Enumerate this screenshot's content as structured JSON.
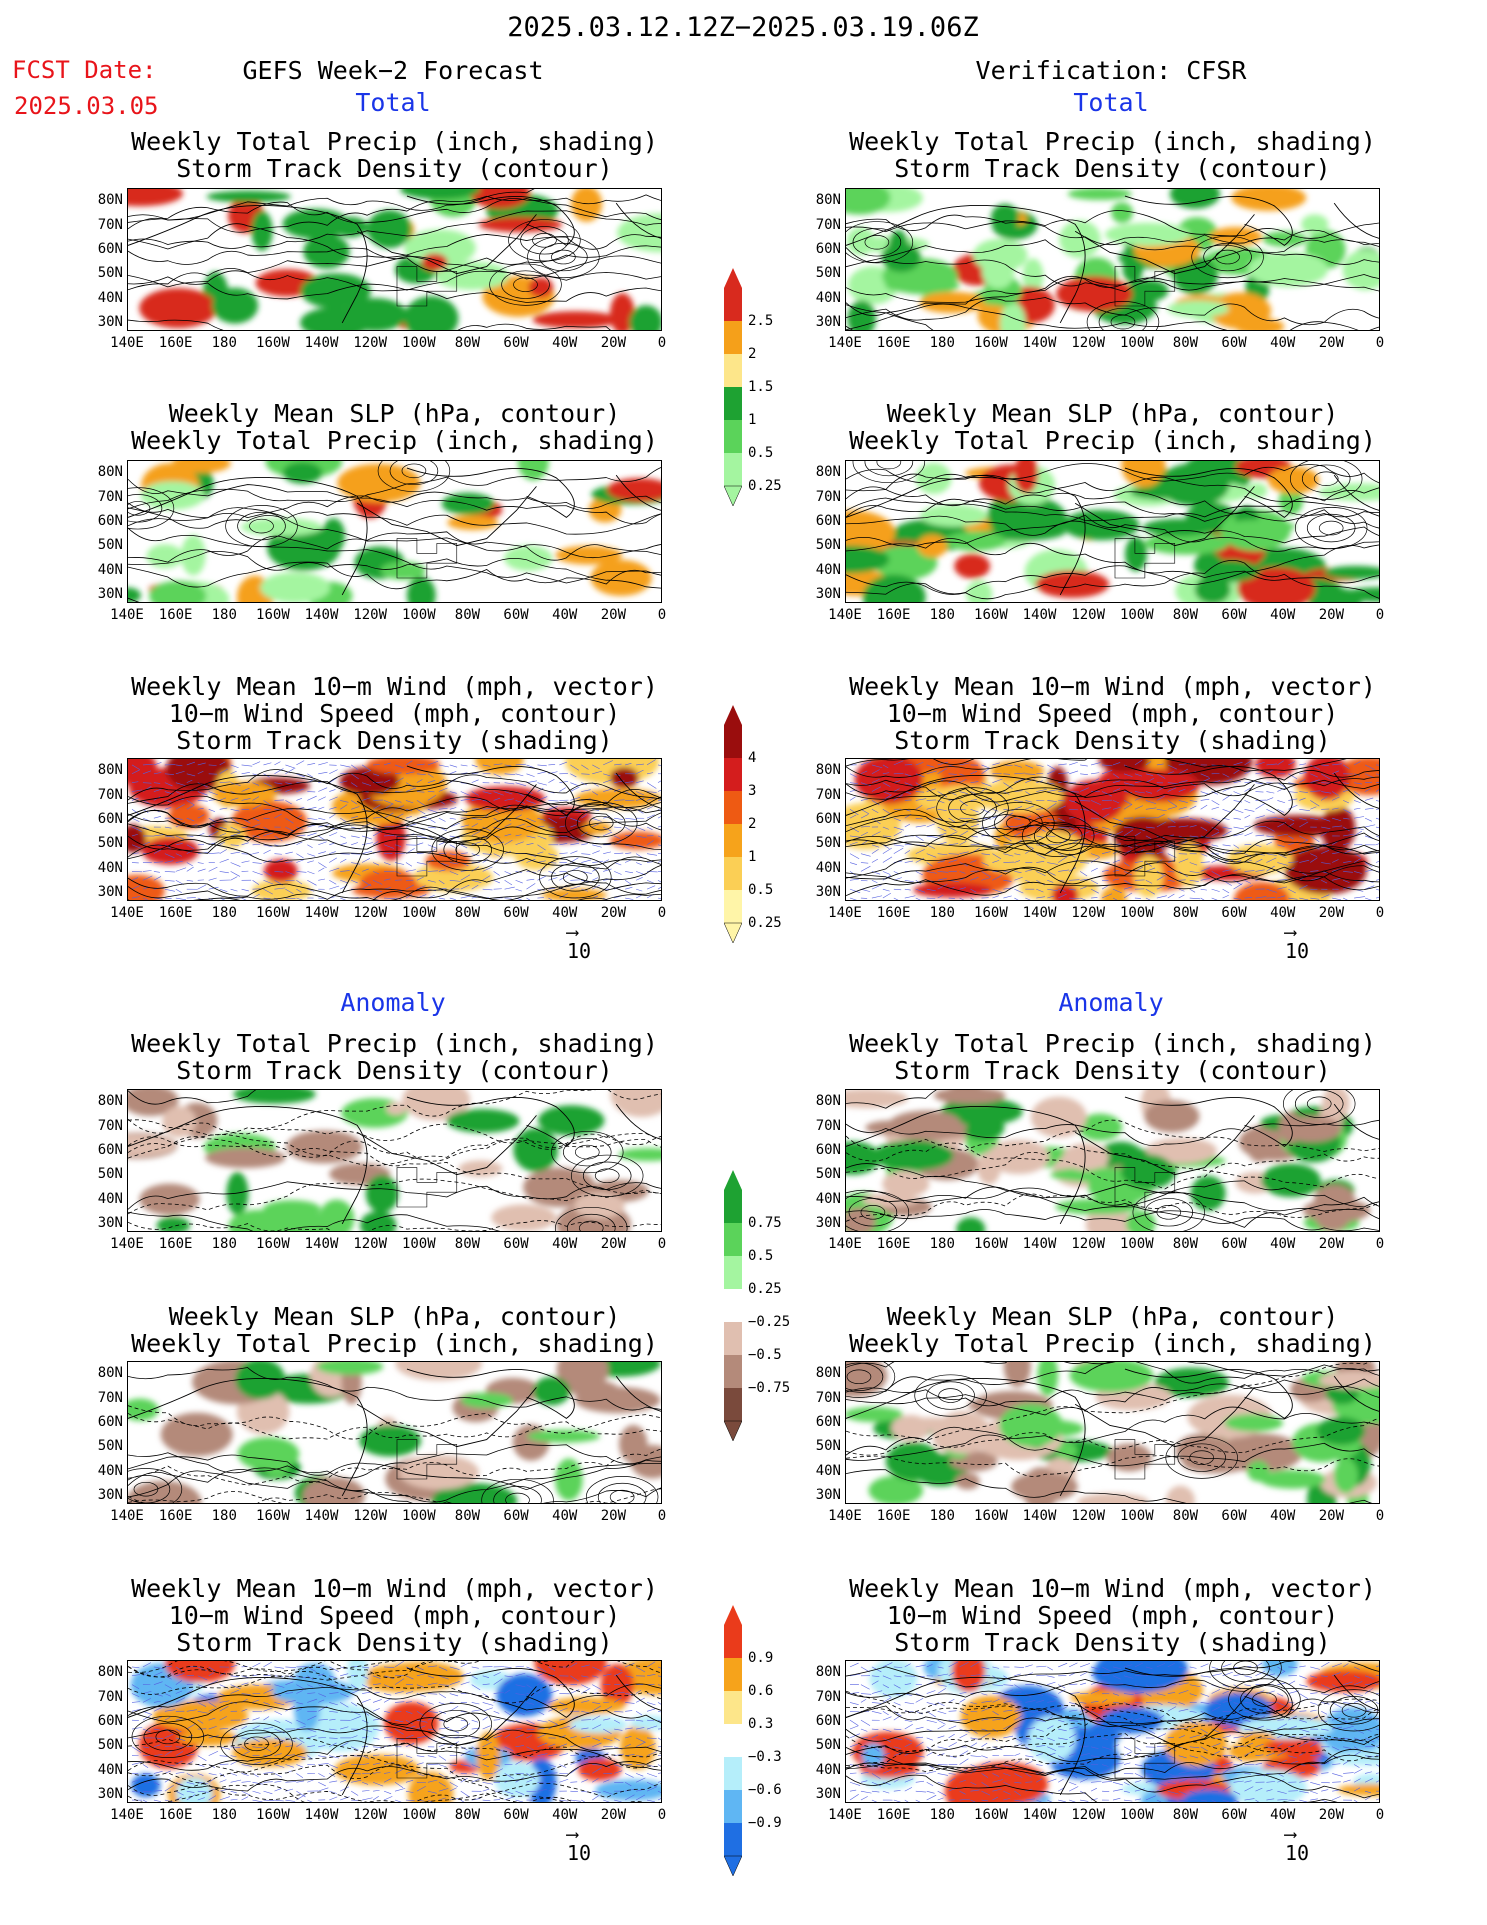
{
  "header": {
    "date_range": "2025.03.12.12Z−2025.03.19.06Z",
    "fcst_label": "FCST Date:",
    "fcst_date": "2025.03.05",
    "left_title": "GEFS Week−2 Forecast",
    "right_title": "Verification: CFSR"
  },
  "sections": {
    "total": "Total",
    "anomaly": "Anomaly"
  },
  "panel_titles": {
    "precip_storm": [
      "Weekly Total Precip (inch, shading)",
      "Storm Track Density (contour)"
    ],
    "slp_precip": [
      "Weekly Mean SLP (hPa, contour)",
      "Weekly Total Precip (inch, shading)"
    ],
    "wind_storm": [
      "Weekly Mean 10−m Wind (mph, vector)",
      "10−m Wind Speed (mph, contour)",
      "Storm Track Density (shading)"
    ]
  },
  "axes": {
    "lat_labels": [
      "80N",
      "70N",
      "60N",
      "50N",
      "40N",
      "30N"
    ],
    "lon_labels": [
      "140E",
      "160E",
      "180",
      "160W",
      "140W",
      "120W",
      "100W",
      "80W",
      "60W",
      "40W",
      "20W",
      "0"
    ]
  },
  "vector_ref": "10",
  "colorbars": {
    "precip_total": {
      "labels": [
        "2.5",
        "2",
        "1.5",
        "1",
        "0.5",
        "0.25"
      ],
      "colors": [
        "#d82a1e",
        "#f5a01a",
        "#fde68a",
        "#1ea232",
        "#5bd35a",
        "#a4f5a0"
      ]
    },
    "storm_total": {
      "labels": [
        "4",
        "3",
        "2",
        "1",
        "0.5",
        "0.25"
      ],
      "colors": [
        "#9a0d0d",
        "#d41d1d",
        "#ee5a13",
        "#f6a31b",
        "#fbcf55",
        "#fff5a8"
      ]
    },
    "precip_anom": {
      "labels": [
        "0.75",
        "0.5",
        "0.25",
        "−0.25",
        "−0.5",
        "−0.75"
      ],
      "colors": [
        "#1ea232",
        "#5bd35a",
        "#a4f5a0",
        "#ffffff",
        "#e0bfb0",
        "#b48a7a",
        "#7a4a3c"
      ]
    },
    "storm_anom": {
      "labels": [
        "0.9",
        "0.6",
        "0.3",
        "−0.3",
        "−0.6",
        "−0.9"
      ],
      "colors": [
        "#ea3b1b",
        "#f6a31b",
        "#fde68a",
        "#ffffff",
        "#b5eefa",
        "#5fb6f3",
        "#1f6fe3"
      ]
    },
    "colors": {
      "forecast_date": "#e8141a",
      "section_label": "#1a35e8",
      "vector": "#5560e0"
    }
  }
}
